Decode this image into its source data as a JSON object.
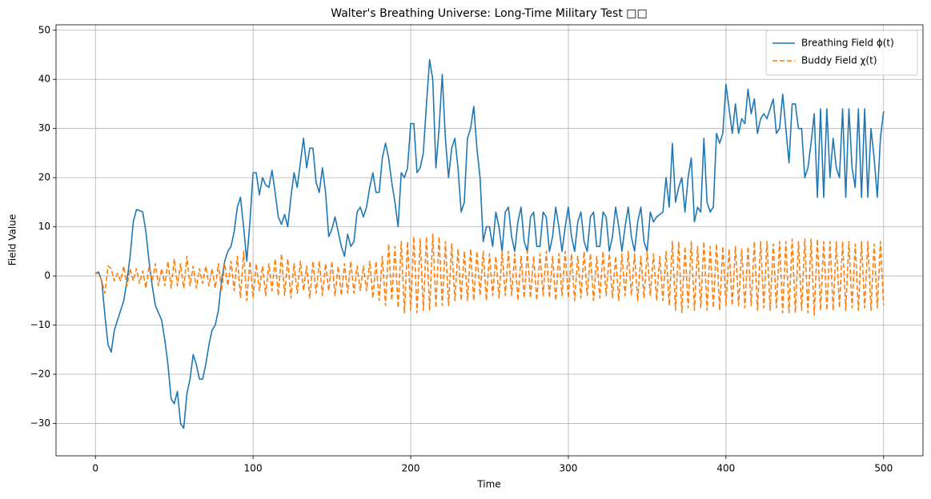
{
  "chart_data": {
    "type": "line",
    "title": "Walter's Breathing Universe: Long-Time Military Test □□",
    "xlabel": "Time",
    "ylabel": "Field Value",
    "x": [
      0,
      2,
      4,
      6,
      8,
      10,
      12,
      14,
      16,
      18,
      20,
      22,
      24,
      26,
      28,
      30,
      32,
      34,
      36,
      38,
      40,
      42,
      44,
      46,
      48,
      50,
      52,
      54,
      56,
      58,
      60,
      62,
      64,
      66,
      68,
      70,
      72,
      74,
      76,
      78,
      80,
      82,
      84,
      86,
      88,
      90,
      92,
      94,
      96,
      98,
      100,
      102,
      104,
      106,
      108,
      110,
      112,
      114,
      116,
      118,
      120,
      122,
      124,
      126,
      128,
      130,
      132,
      134,
      136,
      138,
      140,
      142,
      144,
      146,
      148,
      150,
      152,
      154,
      156,
      158,
      160,
      162,
      164,
      166,
      168,
      170,
      172,
      174,
      176,
      178,
      180,
      182,
      184,
      186,
      188,
      190,
      192,
      194,
      196,
      198,
      200,
      202,
      204,
      206,
      208,
      210,
      212,
      214,
      216,
      218,
      220,
      222,
      224,
      226,
      228,
      230,
      232,
      234,
      236,
      238,
      240,
      242,
      244,
      246,
      248,
      250,
      252,
      254,
      256,
      258,
      260,
      262,
      264,
      266,
      268,
      270,
      272,
      274,
      276,
      278,
      280,
      282,
      284,
      286,
      288,
      290,
      292,
      294,
      296,
      298,
      300,
      302,
      304,
      306,
      308,
      310,
      312,
      314,
      316,
      318,
      320,
      322,
      324,
      326,
      328,
      330,
      332,
      334,
      336,
      338,
      340,
      342,
      344,
      346,
      348,
      350,
      352,
      354,
      356,
      358,
      360,
      362,
      364,
      366,
      368,
      370,
      372,
      374,
      376,
      378,
      380,
      382,
      384,
      386,
      388,
      390,
      392,
      394,
      396,
      398,
      400,
      402,
      404,
      406,
      408,
      410,
      412,
      414,
      416,
      418,
      420,
      422,
      424,
      426,
      428,
      430,
      432,
      434,
      436,
      438,
      440,
      442,
      444,
      446,
      448,
      450,
      452,
      454,
      456,
      458,
      460,
      462,
      464,
      466,
      468,
      470,
      472,
      474,
      476,
      478,
      480,
      482,
      484,
      486,
      488,
      490,
      492,
      494,
      496,
      498,
      500
    ],
    "series": [
      {
        "name": "Breathing Field ϕ(t)",
        "color": "#1f77b4",
        "linestyle": "solid",
        "values": [
          0.5,
          0.8,
          -1,
          -8,
          -14,
          -15.5,
          -11,
          -9,
          -7,
          -5,
          -1,
          4,
          11,
          13.5,
          13.3,
          13,
          9,
          3,
          -2,
          -6,
          -7.5,
          -9,
          -13,
          -18,
          -25,
          -26,
          -23.5,
          -30,
          -31,
          -24,
          -21,
          -16,
          -18,
          -21,
          -21,
          -18,
          -14,
          -11,
          -10,
          -7,
          -1,
          3,
          5,
          6,
          9,
          14,
          16,
          10,
          3,
          11,
          21,
          21,
          16.5,
          20,
          18.5,
          18,
          21.5,
          17,
          12,
          10.5,
          12.5,
          10,
          16,
          21,
          18,
          23,
          28,
          22,
          26,
          26,
          19,
          17,
          22,
          17,
          8,
          9.5,
          12,
          9,
          6,
          4,
          8.5,
          6,
          7,
          13,
          14,
          12,
          14,
          18,
          21,
          17,
          17,
          24,
          27,
          24,
          19,
          15,
          10,
          21,
          20,
          22,
          31,
          31,
          21,
          22,
          25,
          35,
          44,
          40,
          22,
          30,
          41,
          28,
          20,
          26,
          28,
          22,
          13,
          15,
          28,
          30,
          34.5,
          26,
          20,
          7,
          10,
          10,
          6,
          13,
          10,
          5,
          13,
          14,
          8,
          5,
          11,
          14,
          7,
          5,
          12,
          13,
          6,
          6,
          13,
          12,
          5,
          8,
          14,
          10,
          5,
          10,
          14,
          8,
          5,
          11,
          13,
          7,
          5,
          12,
          13,
          6,
          6,
          13,
          12,
          5,
          8,
          14,
          10,
          5,
          10,
          14,
          8,
          5,
          11,
          14,
          7,
          5,
          13,
          11,
          12,
          12.5,
          13,
          20,
          14,
          27,
          15,
          18,
          20,
          13,
          20,
          24,
          11,
          14,
          13,
          28,
          15,
          13,
          14,
          29,
          27,
          29,
          39,
          34,
          29,
          35,
          29,
          32,
          31,
          38,
          33,
          36,
          29,
          32,
          33,
          32,
          34,
          36,
          29,
          30,
          37,
          30,
          23,
          35,
          35,
          30,
          30,
          20,
          22,
          27,
          33,
          16,
          34,
          16,
          34,
          20,
          28,
          22,
          20,
          34,
          16,
          34,
          22,
          18,
          34,
          16,
          34,
          16,
          30,
          24,
          16,
          28,
          33.5
        ]
      },
      {
        "name": "Buddy Field χ(t)",
        "color": "#ff7f0e",
        "linestyle": "dashed",
        "values": [
          0.5,
          0.5,
          -1,
          -3.5,
          2,
          1.5,
          -1,
          0.5,
          -1,
          2,
          -2,
          1.5,
          -1,
          1.5,
          -1.5,
          1,
          -2.5,
          2,
          -1,
          2.5,
          -2,
          1.5,
          -2,
          3,
          -2.5,
          3.5,
          -2,
          2.5,
          -2.5,
          4,
          -2,
          2,
          -2.5,
          1.5,
          -1.5,
          2,
          -2,
          1.5,
          -2.5,
          2.5,
          -3,
          2.5,
          -2,
          3,
          -3,
          4,
          -4.5,
          5,
          -5,
          3,
          -4.5,
          2.5,
          -3,
          2,
          -4,
          2.5,
          -3,
          3.5,
          -4,
          4.5,
          -4,
          3.5,
          -4.5,
          2.5,
          -3.5,
          3,
          -3,
          2,
          -4.5,
          3,
          -3.5,
          3,
          -4,
          2.5,
          -3,
          3,
          -4,
          2,
          -4,
          2.5,
          -3.5,
          3,
          -3.5,
          2,
          -3,
          2,
          -3,
          3,
          -4.5,
          3,
          -5,
          4,
          -6,
          6.5,
          -5,
          6,
          -6.5,
          7,
          -7.5,
          7,
          -7,
          8,
          -7.5,
          7.5,
          -7,
          8,
          -7,
          8.5,
          -6.5,
          8,
          -6,
          7,
          -6,
          6.5,
          -5,
          5.5,
          -5,
          5,
          -5,
          5.5,
          -5,
          5,
          -4,
          5,
          -5,
          4.5,
          -4,
          4,
          -4.5,
          5,
          -4,
          5,
          -4,
          4.5,
          -5,
          4,
          -4.5,
          5,
          -4.5,
          4,
          -5,
          4.5,
          -4,
          5,
          -4.5,
          4,
          -5,
          4.5,
          -4,
          5,
          -4.5,
          4.5,
          -5,
          4,
          -4.5,
          5,
          -4,
          4.5,
          -5,
          4,
          -4.5,
          5,
          -4,
          4.5,
          -4.5,
          4,
          -5,
          4.5,
          -4,
          5,
          -4,
          4.5,
          -5,
          4,
          -4.5,
          5,
          -4,
          4.5,
          -5,
          4,
          -5,
          5,
          -6,
          7,
          -7,
          7,
          -7.5,
          6,
          -6.5,
          7,
          -7,
          6,
          -6.5,
          7,
          -7,
          6,
          -6.5,
          6.5,
          -7,
          6,
          -6,
          5.5,
          -6,
          6,
          -6,
          5.5,
          -6.5,
          6,
          -6,
          7,
          -7,
          7,
          -6.5,
          7,
          -7,
          6.5,
          -6.5,
          7,
          -7.5,
          7,
          -7.5,
          7.5,
          -7.5,
          7,
          -7,
          7.5,
          -7.5,
          7.5,
          -8,
          7.5,
          -7,
          7,
          -7,
          7,
          -7,
          7,
          -6.5,
          7,
          -7,
          7,
          -6.5,
          6.5,
          -7,
          7,
          -6.5,
          7,
          -7,
          6.5,
          -6.5,
          7,
          -6
        ]
      }
    ],
    "xlim": [
      -25,
      525
    ],
    "ylim": [
      -36.6,
      51.1
    ],
    "xticks": [
      0,
      100,
      200,
      300,
      400,
      500
    ],
    "yticks": [
      {
        "value": -30,
        "label": "−30"
      },
      {
        "value": -20,
        "label": "−20"
      },
      {
        "value": -10,
        "label": "−10"
      },
      0,
      10,
      20,
      30,
      40,
      50
    ],
    "grid": true,
    "legend": "upper right"
  }
}
